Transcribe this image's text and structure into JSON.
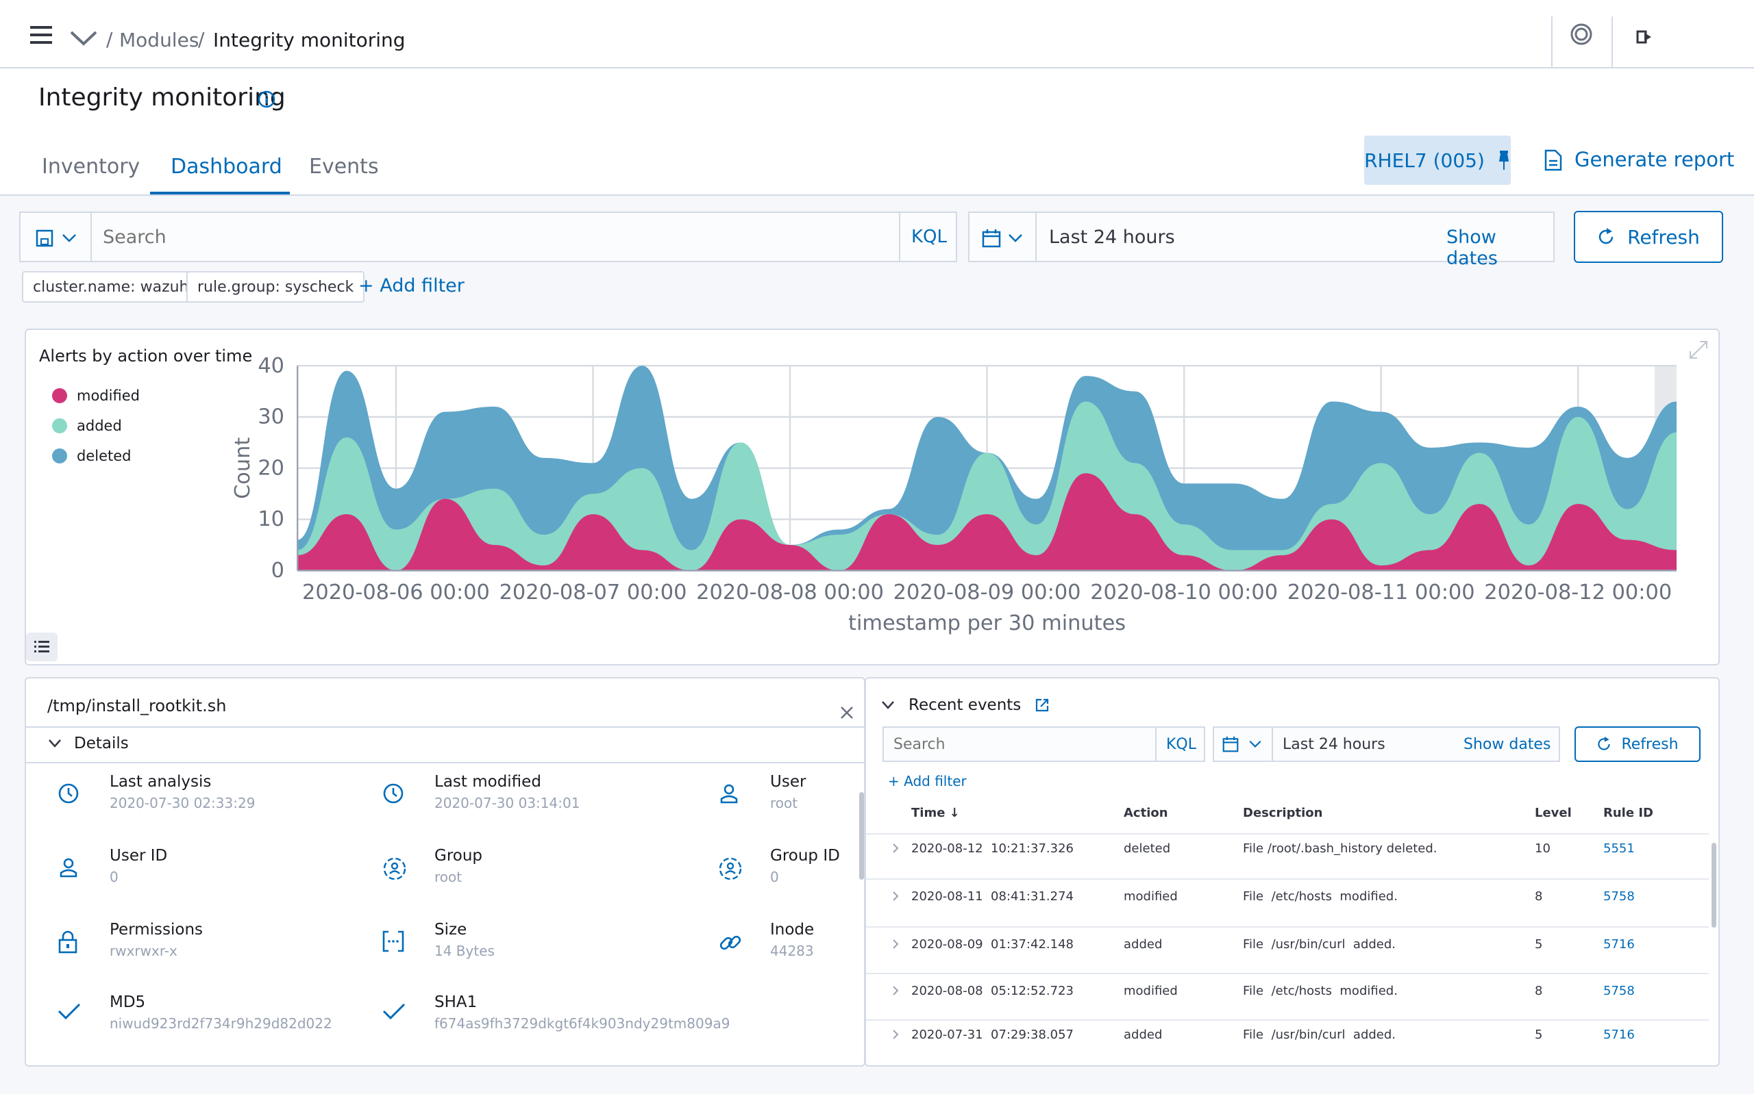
{
  "breadcrumb": {
    "parent": "Modules",
    "current": "Integrity monitoring"
  },
  "page": {
    "title": "Integrity monitoring"
  },
  "tabs": [
    "Inventory",
    "Dashboard",
    "Events"
  ],
  "agent": {
    "label": "RHEL7 (005)"
  },
  "report": {
    "label": "Generate report"
  },
  "search": {
    "placeholder": "Search",
    "kql": "KQL",
    "time": "Last 24 hours",
    "show_dates": "Show dates",
    "refresh": "Refresh"
  },
  "filters": [
    "cluster.name: wazuh",
    "rule.group: syscheck"
  ],
  "add_filter": "+ Add filter",
  "chart": {
    "title": "Alerts by action over time",
    "legend": [
      "modified",
      "added",
      "deleted"
    ],
    "ylabel": "Count",
    "xlabel": "timestamp per 30 minutes",
    "yticks": [
      "0",
      "10",
      "20",
      "30",
      "40"
    ],
    "xticks": [
      "2020-08-06 00:00",
      "2020-08-07 00:00",
      "2020-08-08 00:00",
      "2020-08-09 00:00",
      "2020-08-10 00:00",
      "2020-08-11 00:00",
      "2020-08-12 00:00"
    ]
  },
  "colors": {
    "modified": "#d2347a",
    "added": "#8ad8c6",
    "deleted": "#5fa6c9",
    "accent": "#006bb8"
  },
  "chart_data": {
    "type": "area",
    "title": "Alerts by action over time",
    "xlabel": "timestamp per 30 minutes",
    "ylabel": "Count",
    "ylim": [
      0,
      40
    ],
    "x": [
      "2020-08-05 12:00",
      "2020-08-05 18:00",
      "2020-08-06 00:00",
      "2020-08-06 06:00",
      "2020-08-06 12:00",
      "2020-08-06 18:00",
      "2020-08-07 00:00",
      "2020-08-07 06:00",
      "2020-08-07 12:00",
      "2020-08-07 18:00",
      "2020-08-08 00:00",
      "2020-08-08 06:00",
      "2020-08-08 12:00",
      "2020-08-08 18:00",
      "2020-08-09 00:00",
      "2020-08-09 06:00",
      "2020-08-09 12:00",
      "2020-08-09 18:00",
      "2020-08-10 00:00",
      "2020-08-10 06:00",
      "2020-08-10 12:00",
      "2020-08-10 18:00",
      "2020-08-11 00:00",
      "2020-08-11 06:00",
      "2020-08-11 12:00",
      "2020-08-11 18:00",
      "2020-08-12 00:00",
      "2020-08-12 06:00",
      "2020-08-12 12:00"
    ],
    "series": [
      {
        "name": "modified",
        "values": [
          3,
          11,
          0,
          14,
          5,
          1,
          11,
          4,
          0,
          10,
          5,
          0,
          11,
          5,
          11,
          3,
          19,
          11,
          3,
          0,
          3,
          10,
          1,
          4,
          13,
          1,
          13,
          6,
          4
        ]
      },
      {
        "name": "added",
        "values": [
          1,
          15,
          8,
          0,
          11,
          6,
          4,
          16,
          4,
          15,
          0,
          7,
          0,
          2,
          12,
          6,
          14,
          10,
          6,
          4,
          1,
          3,
          20,
          7,
          10,
          8,
          17,
          6,
          23
        ]
      },
      {
        "name": "deleted",
        "values": [
          2,
          13,
          8,
          17,
          16,
          15,
          6,
          20,
          10,
          0,
          0,
          1,
          1,
          23,
          0,
          5,
          5,
          14,
          8,
          13,
          10,
          20,
          10,
          13,
          2,
          15,
          2,
          10,
          6
        ]
      }
    ]
  },
  "file": {
    "path": "/tmp/install_rootkit.sh",
    "details_label": "Details",
    "items": [
      {
        "label": "Last analysis",
        "value": "2020-07-30 02:33:29",
        "icon": "clock-icon"
      },
      {
        "label": "Last modified",
        "value": "2020-07-30 03:14:01",
        "icon": "clock-icon"
      },
      {
        "label": "User",
        "value": "root",
        "icon": "user-icon"
      },
      {
        "label": "User ID",
        "value": "0",
        "icon": "user-icon"
      },
      {
        "label": "Group",
        "value": "root",
        "icon": "group-icon"
      },
      {
        "label": "Group ID",
        "value": "0",
        "icon": "group-icon"
      },
      {
        "label": "Permissions",
        "value": "rwxrwxr-x",
        "icon": "lock-icon"
      },
      {
        "label": "Size",
        "value": "14 Bytes",
        "icon": "size-icon"
      },
      {
        "label": "Inode",
        "value": "44283",
        "icon": "link-icon"
      },
      {
        "label": "MD5",
        "value": "niwud923rd2f734r9h29d82d022",
        "icon": "check-icon"
      },
      {
        "label": "SHA1",
        "value": "f674as9fh3729dkgt6f4k903ndy29tm809a9",
        "icon": "check-icon"
      }
    ]
  },
  "recent": {
    "title": "Recent events",
    "add_filter": "+ Add filter",
    "columns": [
      "Time",
      "Action",
      "Description",
      "Level",
      "Rule ID"
    ],
    "rows": [
      {
        "time": "2020-08-12  10:21:37.326",
        "action": "deleted",
        "description": "File /root/.bash_history deleted.",
        "level": "10",
        "rule": "5551"
      },
      {
        "time": "2020-08-11  08:41:31.274",
        "action": "modified",
        "description": "File  /etc/hosts  modified.",
        "level": "8",
        "rule": "5758"
      },
      {
        "time": "2020-08-09  01:37:42.148",
        "action": "added",
        "description": "File  /usr/bin/curl  added.",
        "level": "5",
        "rule": "5716"
      },
      {
        "time": "2020-08-08  05:12:52.723",
        "action": "modified",
        "description": "File  /etc/hosts  modified.",
        "level": "8",
        "rule": "5758"
      },
      {
        "time": "2020-07-31  07:29:38.057",
        "action": "added",
        "description": "File  /usr/bin/curl  added.",
        "level": "5",
        "rule": "5716"
      }
    ]
  }
}
